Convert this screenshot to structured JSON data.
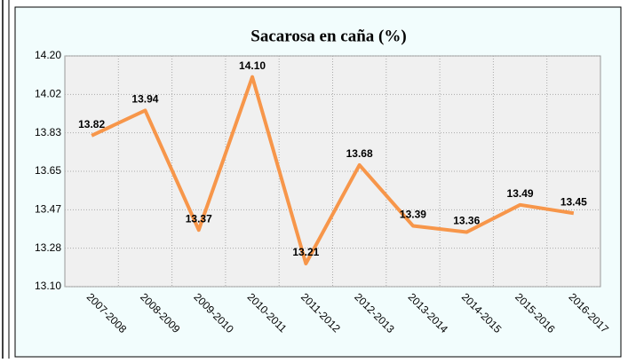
{
  "chart_data": {
    "type": "line",
    "title": "Sacarosa en caña  (%)",
    "categories": [
      "2007-2008",
      "2008-2009",
      "2009-2010",
      "2010-2011",
      "2011-2012",
      "2012-2013",
      "2013-2014",
      "2014-2015",
      "2015-2016",
      "2016-2017"
    ],
    "series": [
      {
        "name": "Sacarosa en caña",
        "color": "#f7964a",
        "values": [
          13.82,
          13.94,
          13.37,
          14.1,
          13.21,
          13.68,
          13.39,
          13.36,
          13.49,
          13.45
        ],
        "value_labels": [
          "13.82",
          "13.94",
          "13.37",
          "14.10",
          "13.21",
          "13.68",
          "13.39",
          "13.36",
          "13.49",
          "13.45"
        ]
      }
    ],
    "ylim": [
      13.1,
      14.2
    ],
    "yticks": [
      {
        "value": 13.1,
        "label": "13.10"
      },
      {
        "value": 13.2833,
        "label": "13.28"
      },
      {
        "value": 13.4667,
        "label": "13.47"
      },
      {
        "value": 13.65,
        "label": "13.65"
      },
      {
        "value": 13.8333,
        "label": "13.83"
      },
      {
        "value": 14.0167,
        "label": "14.02"
      },
      {
        "value": 14.2,
        "label": "14.20"
      }
    ],
    "grid": true
  }
}
